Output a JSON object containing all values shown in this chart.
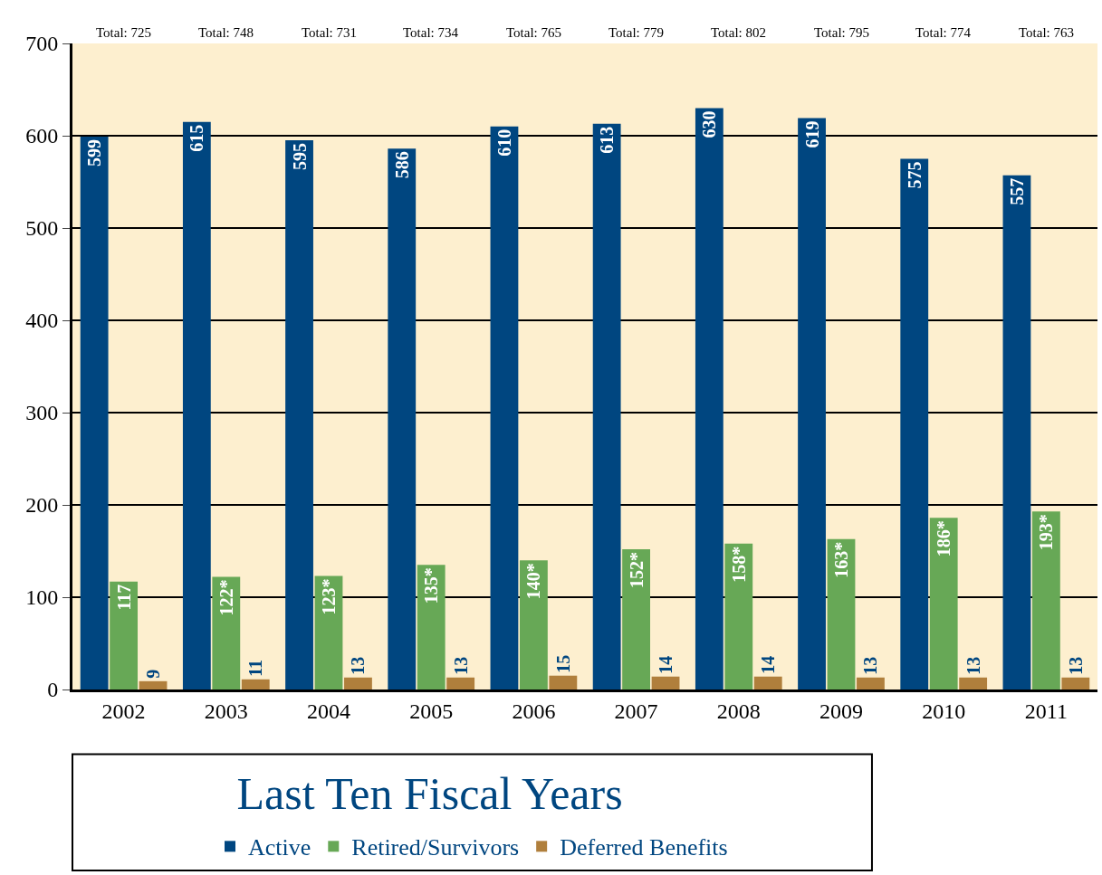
{
  "chart_data": {
    "type": "bar",
    "title": "Last Ten Fiscal Years",
    "categories": [
      "2002",
      "2003",
      "2004",
      "2005",
      "2006",
      "2007",
      "2008",
      "2009",
      "2010",
      "2011"
    ],
    "series": [
      {
        "name": "Active",
        "color": "#004680",
        "values": [
          599,
          615,
          595,
          586,
          610,
          613,
          630,
          619,
          575,
          557
        ],
        "value_labels": [
          "599",
          "615",
          "595",
          "586",
          "610",
          "613",
          "630",
          "619",
          "575",
          "557"
        ]
      },
      {
        "name": "Retired/Survivors",
        "color": "#67a856",
        "values": [
          117,
          122,
          123,
          135,
          140,
          152,
          158,
          163,
          186,
          193
        ],
        "value_labels": [
          "117",
          "122*",
          "123*",
          "135*",
          "140*",
          "152*",
          "158*",
          "163*",
          "186*",
          "193*"
        ]
      },
      {
        "name": "Deferred Benefits",
        "color": "#b07f3c",
        "values": [
          9,
          11,
          13,
          13,
          15,
          14,
          14,
          13,
          13,
          13
        ],
        "value_labels": [
          "9",
          "11",
          "13",
          "13",
          "15",
          "14",
          "14",
          "13",
          "13",
          "13"
        ]
      }
    ],
    "annotations": [
      "Total: 725",
      "Total: 748",
      "Total: 731",
      "Total: 734",
      "Total: 765",
      "Total: 779",
      "Total: 802",
      "Total: 795",
      "Total: 774",
      "Total: 763"
    ],
    "ylim": [
      0,
      700
    ],
    "yticks": [
      0,
      100,
      200,
      300,
      400,
      500,
      600,
      700
    ],
    "grid": "y",
    "legend": "bottom"
  }
}
